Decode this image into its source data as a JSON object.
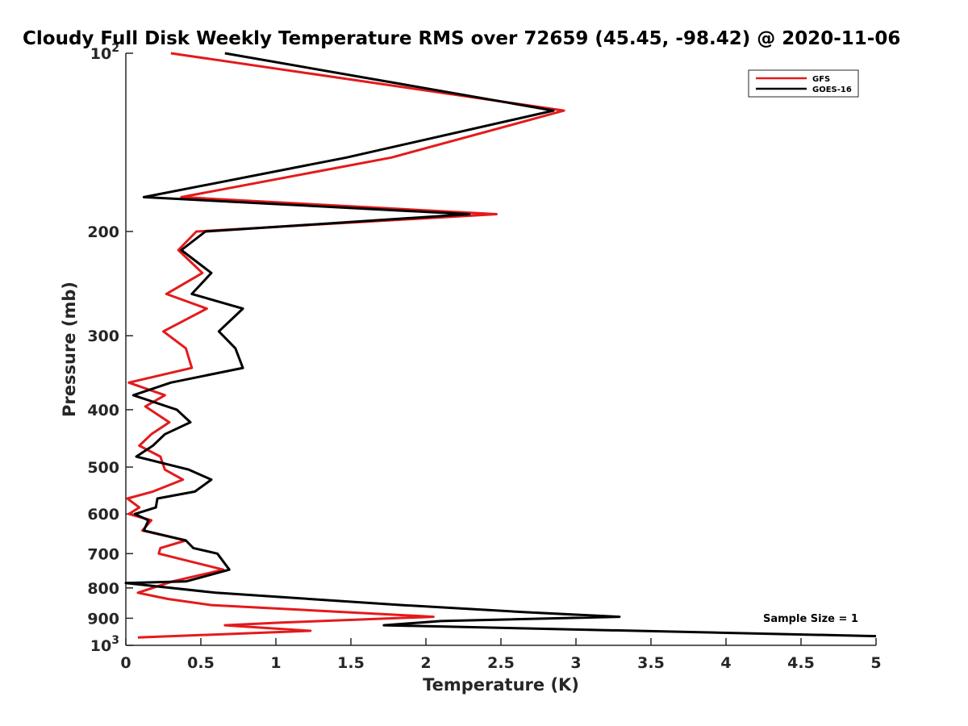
{
  "chart_data": {
    "type": "line",
    "title": "Cloudy Full Disk Weekly Temperature RMS over 72659 (45.45, -98.42) @ 2020-11-06",
    "xlabel": "Temperature (K)",
    "ylabel": "Pressure (mb)",
    "xlim": [
      0,
      5
    ],
    "ylim": [
      100,
      1000
    ],
    "y_scale": "log",
    "y_reversed": true,
    "grid": false,
    "legend_position": "top-right",
    "x_ticks": [
      "0",
      "0.5",
      "1",
      "1.5",
      "2",
      "2.5",
      "3",
      "3.5",
      "4",
      "4.5",
      "5"
    ],
    "y_ticks": [
      {
        "value": 100,
        "base": "10",
        "exp": "2"
      },
      {
        "value": 200,
        "label": "200"
      },
      {
        "value": 300,
        "label": "300"
      },
      {
        "value": 400,
        "label": "400"
      },
      {
        "value": 500,
        "label": "500"
      },
      {
        "value": 600,
        "label": "600"
      },
      {
        "value": 700,
        "label": "700"
      },
      {
        "value": 800,
        "label": "800"
      },
      {
        "value": 900,
        "label": "900"
      },
      {
        "value": 1000,
        "base": "10",
        "exp": "3"
      }
    ],
    "series": [
      {
        "name": "GFS",
        "color": "#e41a1c",
        "points": [
          [
            0.3,
            100
          ],
          [
            2.92,
            125
          ],
          [
            1.77,
            150
          ],
          [
            0.37,
            175
          ],
          [
            2.47,
            187
          ],
          [
            0.47,
            200
          ],
          [
            0.35,
            215
          ],
          [
            0.51,
            235
          ],
          [
            0.27,
            255
          ],
          [
            0.54,
            270
          ],
          [
            0.25,
            295
          ],
          [
            0.4,
            315
          ],
          [
            0.44,
            340
          ],
          [
            0.02,
            360
          ],
          [
            0.26,
            378
          ],
          [
            0.13,
            395
          ],
          [
            0.29,
            420
          ],
          [
            0.17,
            440
          ],
          [
            0.09,
            460
          ],
          [
            0.23,
            480
          ],
          [
            0.26,
            505
          ],
          [
            0.38,
            525
          ],
          [
            0.18,
            550
          ],
          [
            0.01,
            565
          ],
          [
            0.09,
            585
          ],
          [
            0.02,
            600
          ],
          [
            0.17,
            615
          ],
          [
            0.11,
            640
          ],
          [
            0.4,
            665
          ],
          [
            0.23,
            685
          ],
          [
            0.22,
            700
          ],
          [
            0.65,
            745
          ],
          [
            0.31,
            780
          ],
          [
            0.08,
            815
          ],
          [
            0.28,
            835
          ],
          [
            0.57,
            855
          ],
          [
            2.05,
            895
          ],
          [
            1.04,
            915
          ],
          [
            0.66,
            925
          ],
          [
            1.23,
            945
          ],
          [
            0.08,
            970
          ]
        ]
      },
      {
        "name": "GOES-16",
        "color": "#000000",
        "points": [
          [
            0.66,
            100
          ],
          [
            2.85,
            125
          ],
          [
            1.47,
            150
          ],
          [
            0.12,
            175
          ],
          [
            2.29,
            187
          ],
          [
            0.53,
            200
          ],
          [
            0.37,
            215
          ],
          [
            0.57,
            235
          ],
          [
            0.44,
            255
          ],
          [
            0.78,
            270
          ],
          [
            0.62,
            295
          ],
          [
            0.73,
            315
          ],
          [
            0.78,
            340
          ],
          [
            0.3,
            360
          ],
          [
            0.05,
            378
          ],
          [
            0.34,
            400
          ],
          [
            0.43,
            420
          ],
          [
            0.26,
            440
          ],
          [
            0.18,
            460
          ],
          [
            0.07,
            480
          ],
          [
            0.42,
            505
          ],
          [
            0.57,
            525
          ],
          [
            0.46,
            550
          ],
          [
            0.21,
            565
          ],
          [
            0.2,
            585
          ],
          [
            0.06,
            600
          ],
          [
            0.15,
            615
          ],
          [
            0.12,
            640
          ],
          [
            0.4,
            665
          ],
          [
            0.45,
            685
          ],
          [
            0.61,
            700
          ],
          [
            0.69,
            745
          ],
          [
            0.4,
            780
          ],
          [
            0.0,
            785
          ],
          [
            0.6,
            815
          ],
          [
            1.84,
            855
          ],
          [
            2.7,
            880
          ],
          [
            3.29,
            895
          ],
          [
            2.1,
            910
          ],
          [
            1.72,
            925
          ],
          [
            5.0,
            965
          ]
        ]
      }
    ],
    "annotation": "Sample Size = 1"
  }
}
